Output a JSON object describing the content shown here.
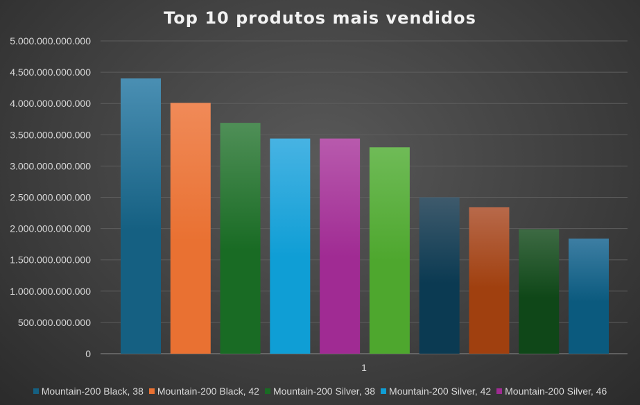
{
  "chart_data": {
    "type": "bar",
    "title": "Top 10 produtos mais vendidos",
    "categories": [
      "1"
    ],
    "ylim": [
      0,
      5000000000000
    ],
    "yticks": [
      {
        "value": 0,
        "label": "0"
      },
      {
        "value": 500000000000,
        "label": "500.000.000.000"
      },
      {
        "value": 1000000000000,
        "label": "1.000.000.000.000"
      },
      {
        "value": 1500000000000,
        "label": "1.500.000.000.000"
      },
      {
        "value": 2000000000000,
        "label": "2.000.000.000.000"
      },
      {
        "value": 2500000000000,
        "label": "2.500.000.000.000"
      },
      {
        "value": 3000000000000,
        "label": "3.000.000.000.000"
      },
      {
        "value": 3500000000000,
        "label": "3.500.000.000.000"
      },
      {
        "value": 4000000000000,
        "label": "4.000.000.000.000"
      },
      {
        "value": 4500000000000,
        "label": "4.500.000.000.000"
      },
      {
        "value": 5000000000000,
        "label": "5.000.000.000.000"
      }
    ],
    "grid": true,
    "legend_position": "bottom",
    "series": [
      {
        "name": "Mountain-200 Black, 38",
        "values": [
          4400000000000
        ],
        "color": "#156082",
        "color_light": "#4a8fb3"
      },
      {
        "name": "Mountain-200 Black, 42",
        "values": [
          4010000000000
        ],
        "color": "#e97132",
        "color_light": "#f08a58"
      },
      {
        "name": "Mountain-200 Silver, 38",
        "values": [
          3690000000000
        ],
        "color": "#196b24",
        "color_light": "#4f8f57"
      },
      {
        "name": "Mountain-200 Silver, 42",
        "values": [
          3440000000000
        ],
        "color": "#0f9ed5",
        "color_light": "#47b3e3"
      },
      {
        "name": "Mountain-200 Silver, 46",
        "values": [
          3440000000000
        ],
        "color": "#a02b93",
        "color_light": "#b85aad"
      },
      {
        "name": "",
        "values": [
          3300000000000
        ],
        "color": "#4ea72e",
        "color_light": "#6fbb57"
      },
      {
        "name": "",
        "values": [
          2500000000000
        ],
        "color": "#0b3a52",
        "color_light": "#3e5a6c"
      },
      {
        "name": "",
        "values": [
          2340000000000
        ],
        "color": "#a0400f",
        "color_light": "#b8694a"
      },
      {
        "name": "",
        "values": [
          1990000000000
        ],
        "color": "#0f4718",
        "color_light": "#3d6a43"
      },
      {
        "name": "",
        "values": [
          1840000000000
        ],
        "color": "#0b5a7e",
        "color_light": "#3d7ea3"
      }
    ]
  }
}
